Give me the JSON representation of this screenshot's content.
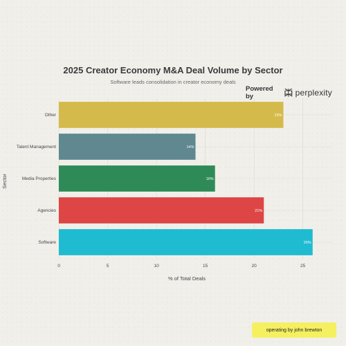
{
  "chart_data": {
    "type": "bar",
    "orientation": "horizontal",
    "title": "2025 Creator Economy M&A Deal Volume by Sector",
    "subtitle": "Software leads consolidation in creator economy deals",
    "xlabel": "% of Total Deals",
    "ylabel": "Sector",
    "xlim": [
      0,
      28
    ],
    "xticks": [
      0,
      5,
      10,
      15,
      20,
      25
    ],
    "grid": true,
    "categories": [
      "Other",
      "Talent Management",
      "Media Properties",
      "Agencies",
      "Software"
    ],
    "values": [
      23,
      14,
      16,
      21,
      26
    ],
    "data_labels": [
      "23%",
      "14%",
      "16%",
      "21%",
      "26%"
    ],
    "colors": [
      "#d4ba4a",
      "#5f8890",
      "#2e8b57",
      "#de4545",
      "#1fbbd1"
    ]
  },
  "branding": {
    "powered_by": "Powered by",
    "brand": "perplexity",
    "brand_icon": "perplexity-logo-icon"
  },
  "footer": {
    "text": "operating by john brewton",
    "color": "#f5f060"
  }
}
